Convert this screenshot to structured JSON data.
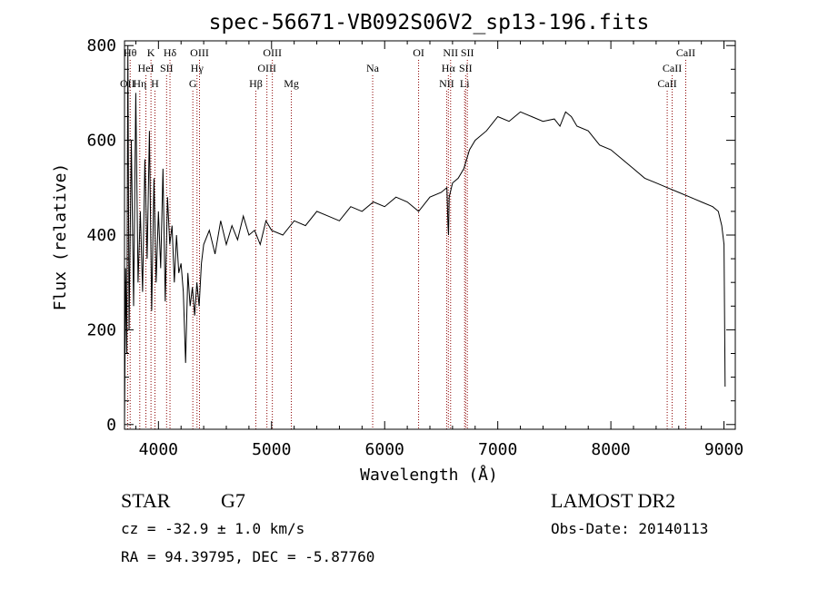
{
  "chart_data": {
    "type": "line",
    "title": "spec-56671-VB092S06V2_sp13-196.fits",
    "xlabel": "Wavelength (Å)",
    "ylabel": "Flux (relative)",
    "xlim": [
      3700,
      9100
    ],
    "ylim": [
      -10,
      810
    ],
    "x_ticks": [
      4000,
      5000,
      6000,
      7000,
      8000,
      9000
    ],
    "y_ticks": [
      0,
      200,
      400,
      600,
      800
    ],
    "grid": false,
    "series": [
      {
        "x": [
          3700,
          3710,
          3720,
          3730,
          3740,
          3760,
          3780,
          3800,
          3820,
          3840,
          3860,
          3880,
          3900,
          3920,
          3940,
          3960,
          3980,
          4000,
          4020,
          4040,
          4060,
          4080,
          4100,
          4120,
          4140,
          4160,
          4180,
          4200,
          4220,
          4240,
          4260,
          4280,
          4300,
          4320,
          4340,
          4360,
          4380,
          4400,
          4450,
          4500,
          4550,
          4600,
          4650,
          4700,
          4750,
          4800,
          4850,
          4900,
          4950,
          5000,
          5100,
          5200,
          5300,
          5400,
          5500,
          5600,
          5700,
          5800,
          5900,
          6000,
          6100,
          6200,
          6300,
          6400,
          6500,
          6550,
          6560,
          6565,
          6570,
          6600,
          6650,
          6700,
          6750,
          6800,
          6900,
          7000,
          7100,
          7200,
          7300,
          7400,
          7500,
          7550,
          7600,
          7650,
          7700,
          7800,
          7900,
          8000,
          8100,
          8200,
          8300,
          8400,
          8500,
          8600,
          8700,
          8800,
          8900,
          8950,
          8980,
          9000,
          9010
        ],
        "y": [
          0,
          330,
          150,
          800,
          200,
          600,
          250,
          700,
          300,
          450,
          280,
          560,
          350,
          620,
          240,
          520,
          300,
          450,
          330,
          540,
          260,
          480,
          380,
          420,
          300,
          400,
          320,
          340,
          280,
          130,
          320,
          250,
          290,
          230,
          300,
          250,
          340,
          380,
          410,
          360,
          430,
          380,
          420,
          390,
          440,
          400,
          410,
          380,
          430,
          410,
          400,
          430,
          420,
          450,
          440,
          430,
          460,
          450,
          470,
          460,
          480,
          470,
          450,
          480,
          490,
          500,
          420,
          400,
          480,
          510,
          520,
          540,
          580,
          600,
          620,
          650,
          640,
          660,
          650,
          640,
          645,
          630,
          660,
          650,
          630,
          620,
          590,
          580,
          560,
          540,
          520,
          510,
          500,
          490,
          480,
          470,
          460,
          450,
          420,
          380,
          80
        ]
      }
    ],
    "lines": [
      {
        "label": "OII",
        "x": 3727,
        "row": 2
      },
      {
        "label": "Hθ",
        "x": 3750,
        "row": 0
      },
      {
        "label": "Hη",
        "x": 3835,
        "row": 2
      },
      {
        "label": "HeI",
        "x": 3889,
        "row": 1
      },
      {
        "label": "K",
        "x": 3934,
        "row": 0
      },
      {
        "label": "H",
        "x": 3969,
        "row": 2
      },
      {
        "label": "SII",
        "x": 4072,
        "row": 1
      },
      {
        "label": "Hδ",
        "x": 4102,
        "row": 0
      },
      {
        "label": "G",
        "x": 4304,
        "row": 2
      },
      {
        "label": "Hγ",
        "x": 4341,
        "row": 1
      },
      {
        "label": "OIII",
        "x": 4363,
        "row": 0
      },
      {
        "label": "Hβ",
        "x": 4861,
        "row": 2
      },
      {
        "label": "OIII",
        "x": 4959,
        "row": 1
      },
      {
        "label": "OIII",
        "x": 5007,
        "row": 0
      },
      {
        "label": "Mg",
        "x": 5175,
        "row": 2
      },
      {
        "label": "Na",
        "x": 5894,
        "row": 1
      },
      {
        "label": "OI",
        "x": 6300,
        "row": 0
      },
      {
        "label": "NII",
        "x": 6548,
        "row": 2
      },
      {
        "label": "Hα",
        "x": 6563,
        "row": 1
      },
      {
        "label": "NII",
        "x": 6583,
        "row": 0
      },
      {
        "label": "Li",
        "x": 6707,
        "row": 2
      },
      {
        "label": "SII",
        "x": 6716,
        "row": 1
      },
      {
        "label": "SII",
        "x": 6731,
        "row": 0
      },
      {
        "label": "CaII",
        "x": 8498,
        "row": 2
      },
      {
        "label": "CaII",
        "x": 8542,
        "row": 1
      },
      {
        "label": "CaII",
        "x": 8662,
        "row": 0
      }
    ],
    "line_color": "#8b0000",
    "curve_color": "#000000"
  },
  "info": {
    "class": "STAR",
    "subclass": "G7",
    "cz": "cz = -32.9 ± 1.0 km/s",
    "radec": "RA =  94.39795, DEC =  -5.87760",
    "survey": "LAMOST DR2",
    "obsdate": "Obs-Date: 20140113"
  }
}
